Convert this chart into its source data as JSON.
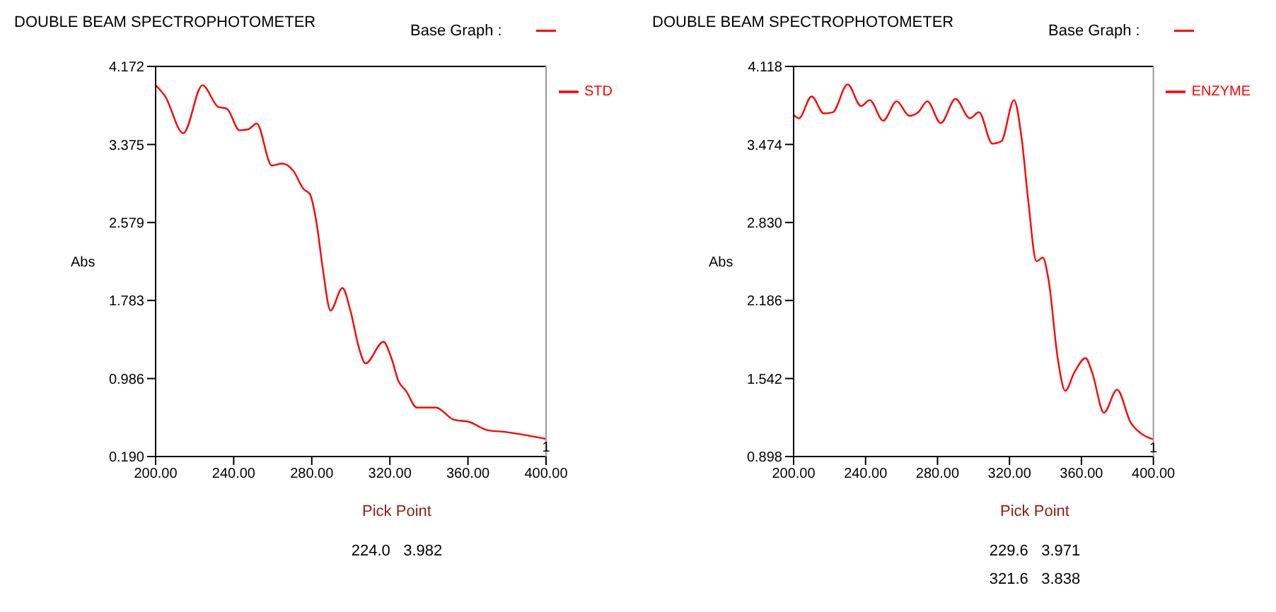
{
  "chart_data": [
    {
      "type": "line",
      "title": "DOUBLE BEAM SPECTROPHOTOMETER",
      "xlabel": "Pick Point",
      "ylabel": "Abs",
      "legend": "top right",
      "series": [
        {
          "name": "STD",
          "color": "#ff0000",
          "x": [
            200,
            204.8,
            214.2,
            224,
            232,
            236.5,
            243,
            247.4,
            251.8,
            259.5,
            264.9,
            270.4,
            275.8,
            279,
            282.4,
            285.7,
            289.6,
            295.7,
            299.9,
            304.3,
            307.5,
            316.7,
            320.7,
            324.4,
            328.3,
            333.8,
            343.6,
            352.3,
            361.1,
            369.8,
            379.7,
            386.2,
            400
          ],
          "values": [
            3.98,
            3.87,
            3.49,
            3.98,
            3.76,
            3.74,
            3.52,
            3.53,
            3.59,
            3.16,
            3.18,
            3.11,
            2.92,
            2.87,
            2.58,
            2.1,
            1.68,
            1.91,
            1.67,
            1.29,
            1.14,
            1.36,
            1.2,
            0.96,
            0.86,
            0.69,
            0.69,
            0.57,
            0.54,
            0.46,
            0.44,
            0.42,
            0.37
          ]
        }
      ],
      "xlim": [
        200,
        400
      ],
      "xticks": [
        {
          "value": 200,
          "label": "200.00"
        },
        {
          "value": 240,
          "label": "240.00"
        },
        {
          "value": 280,
          "label": "280.00"
        },
        {
          "value": 320,
          "label": "320.00"
        },
        {
          "value": 360,
          "label": "360.00"
        },
        {
          "value": 400,
          "label": "400.00"
        }
      ],
      "ylim": [
        0.19,
        4.172
      ],
      "yticks": [
        {
          "value": 0.19,
          "label": "0.190"
        },
        0.986,
        1.783,
        2.579,
        3.375,
        4.172
      ],
      "annotations": [
        "Base Graph :",
        "224.0   3.982",
        {
          "text": "1",
          "x": 400,
          "y": 0.37
        }
      ]
    },
    {
      "type": "line",
      "title": "DOUBLE BEAM SPECTROPHOTOMETER",
      "xlabel": "Pick Point",
      "ylabel": "Abs",
      "legend": "top right",
      "series": [
        {
          "name": "ENZYME",
          "color": "#ff0000",
          "x": [
            200,
            203,
            210,
            216.8,
            221.8,
            230,
            237.5,
            242.3,
            249.8,
            257.3,
            264.3,
            269.3,
            274.3,
            281.8,
            290,
            298,
            303,
            310.5,
            315.5,
            322.5,
            326.8,
            330.5,
            335,
            338.5,
            341.8,
            346.8,
            351,
            356,
            362.3,
            366,
            372.5,
            379.8,
            387.3,
            393,
            400
          ],
          "values": [
            3.72,
            3.69,
            3.87,
            3.73,
            3.74,
            3.97,
            3.79,
            3.84,
            3.67,
            3.83,
            3.71,
            3.74,
            3.83,
            3.65,
            3.85,
            3.69,
            3.74,
            3.48,
            3.5,
            3.84,
            3.52,
            3.0,
            2.51,
            2.54,
            2.35,
            1.71,
            1.44,
            1.59,
            1.71,
            1.59,
            1.26,
            1.45,
            1.18,
            1.09,
            1.04
          ]
        }
      ],
      "xlim": [
        200,
        400
      ],
      "xticks": [
        {
          "value": 200,
          "label": "200.00"
        },
        {
          "value": 240,
          "label": "240.00"
        },
        {
          "value": 280,
          "label": "280.00"
        },
        {
          "value": 320,
          "label": "320.00"
        },
        {
          "value": 360,
          "label": "360.00"
        },
        {
          "value": 400,
          "label": "400.00"
        }
      ],
      "ylim": [
        0.898,
        4.118
      ],
      "yticks": [
        0.898,
        1.542,
        2.186,
        {
          "value": 2.83,
          "label": "2.830"
        },
        3.474,
        4.118
      ],
      "annotations": [
        "Base Graph :",
        "229.6   3.971",
        "321.6   3.838",
        {
          "text": "1",
          "x": 400,
          "y": 1.04
        }
      ]
    }
  ]
}
